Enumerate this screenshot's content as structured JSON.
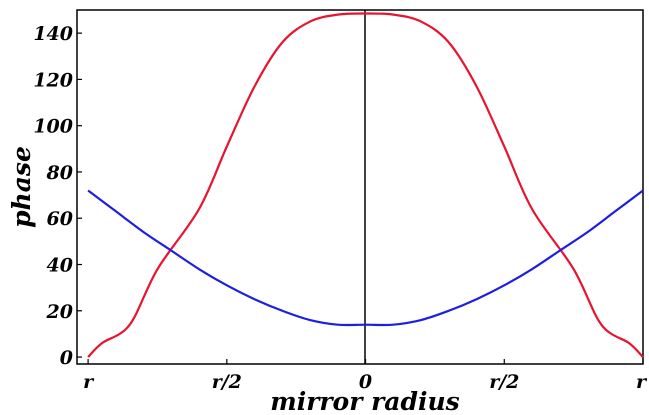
{
  "chart_data": {
    "type": "line",
    "title": "",
    "xlabel": "mirror radius",
    "ylabel": "phase",
    "x_tick_labels": [
      "r",
      "r/2",
      "0",
      "r/2",
      "r"
    ],
    "x_tick_values": [
      -1,
      -0.5,
      0,
      0.5,
      1
    ],
    "xlim": [
      -1.04,
      1.0
    ],
    "y_tick_labels": [
      "0",
      "20",
      "40",
      "60",
      "80",
      "100",
      "120",
      "140"
    ],
    "y_tick_values": [
      0,
      20,
      40,
      60,
      80,
      100,
      120,
      140
    ],
    "ylim": [
      -3,
      150
    ],
    "grid": false,
    "legend": "none",
    "series": [
      {
        "color": "#e8132e",
        "x": [
          -1.0,
          -0.95,
          -0.85,
          -0.75,
          -0.6,
          -0.5,
          -0.4,
          -0.3,
          -0.2,
          -0.1,
          0,
          0.1,
          0.2,
          0.3,
          0.4,
          0.5,
          0.6,
          0.75,
          0.85,
          0.95,
          1.0
        ],
        "y": [
          0,
          6,
          14,
          38,
          64,
          91,
          117,
          136,
          145,
          148,
          148.5,
          148,
          145,
          136,
          117,
          91,
          64,
          38,
          14,
          6,
          0
        ]
      },
      {
        "color": "#1d1fe0",
        "x": [
          -1.0,
          -0.9,
          -0.8,
          -0.7,
          -0.6,
          -0.5,
          -0.4,
          -0.3,
          -0.2,
          -0.1,
          0,
          0.1,
          0.2,
          0.3,
          0.4,
          0.5,
          0.6,
          0.7,
          0.8,
          0.9,
          1.0
        ],
        "y": [
          72,
          63,
          54,
          46,
          38,
          31,
          25,
          20,
          16,
          14,
          14,
          14,
          16,
          20,
          25,
          31,
          38,
          46,
          54,
          63,
          72
        ]
      }
    ]
  }
}
